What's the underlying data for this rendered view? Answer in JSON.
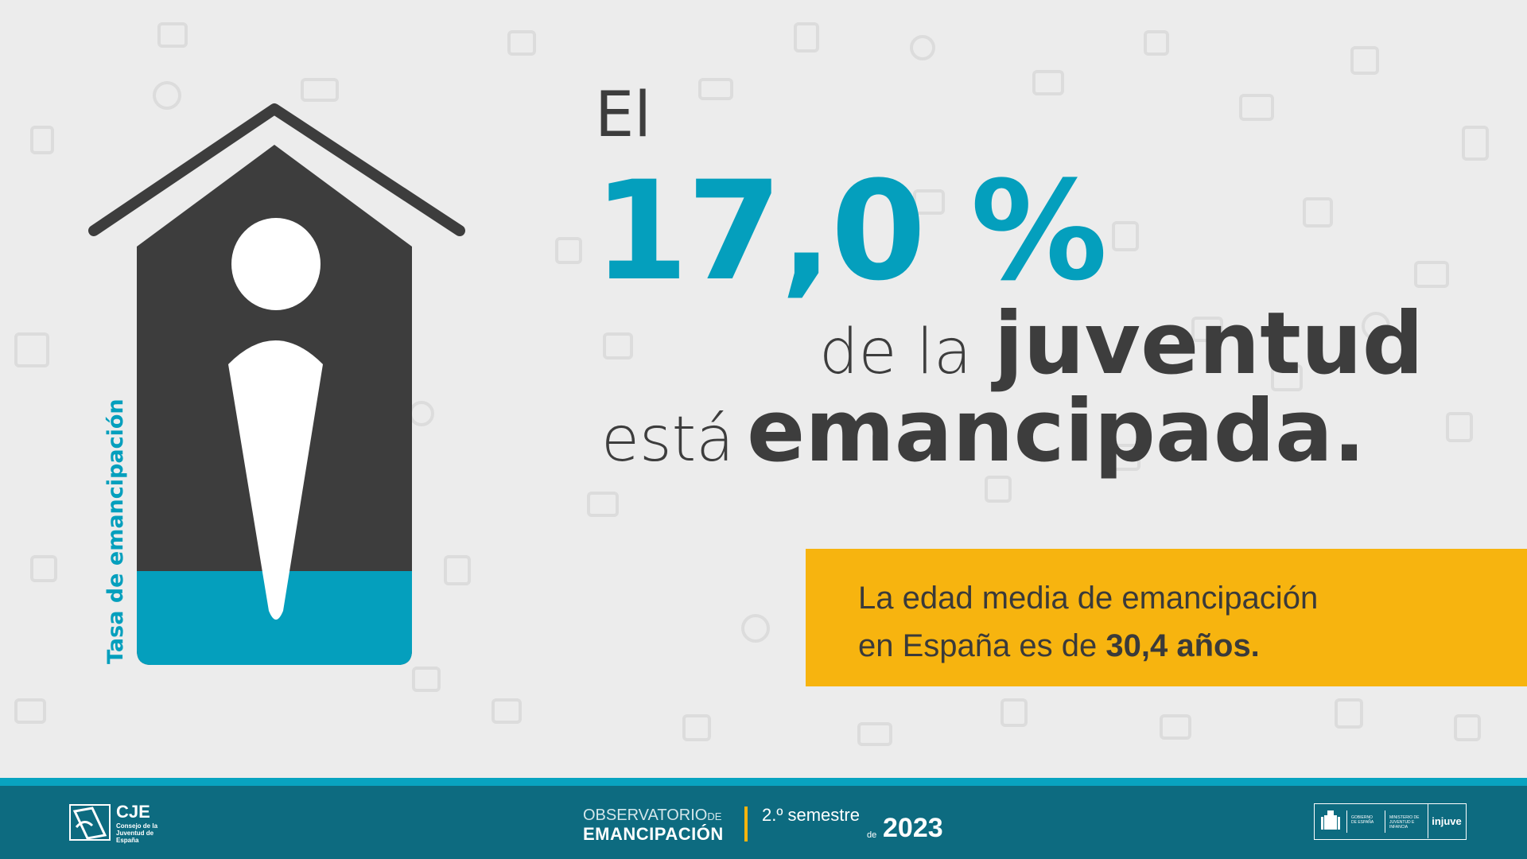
{
  "headline": {
    "el": "El",
    "percentage": "17,0 %",
    "de_la": "de la",
    "juventud": "juventud",
    "esta": "está",
    "emancipada": "emancipada."
  },
  "vertical_label": "Tasa de emancipación",
  "info_box": {
    "line1": "La edad media de emancipación",
    "line2_prefix": "en España es de",
    "line2_value": "30,4 años."
  },
  "footer": {
    "cje_title": "CJE",
    "cje_subtitle": "Consejo de la Juventud de España",
    "observatorio": "OBSERVATORIO",
    "observatorio_de": "DE",
    "emancipacion": "EMANCIPACIÓN",
    "semester": "2.º semestre",
    "semester_de": "de",
    "year": "2023",
    "gov_label": "GOBIERNO DE ESPAÑA",
    "ministry_label": "MINISTERIO DE JUVENTUD E INFANCIA",
    "injuve": "injuve"
  },
  "colors": {
    "accent_blue": "#049fbd",
    "dark_grey": "#3d3d3d",
    "yellow": "#f7b40f",
    "footer_teal": "#0d6b80",
    "background": "#ececec"
  },
  "icons": [
    "house-icon",
    "person-icon",
    "cje-logo-icon",
    "spain-shield-icon"
  ]
}
